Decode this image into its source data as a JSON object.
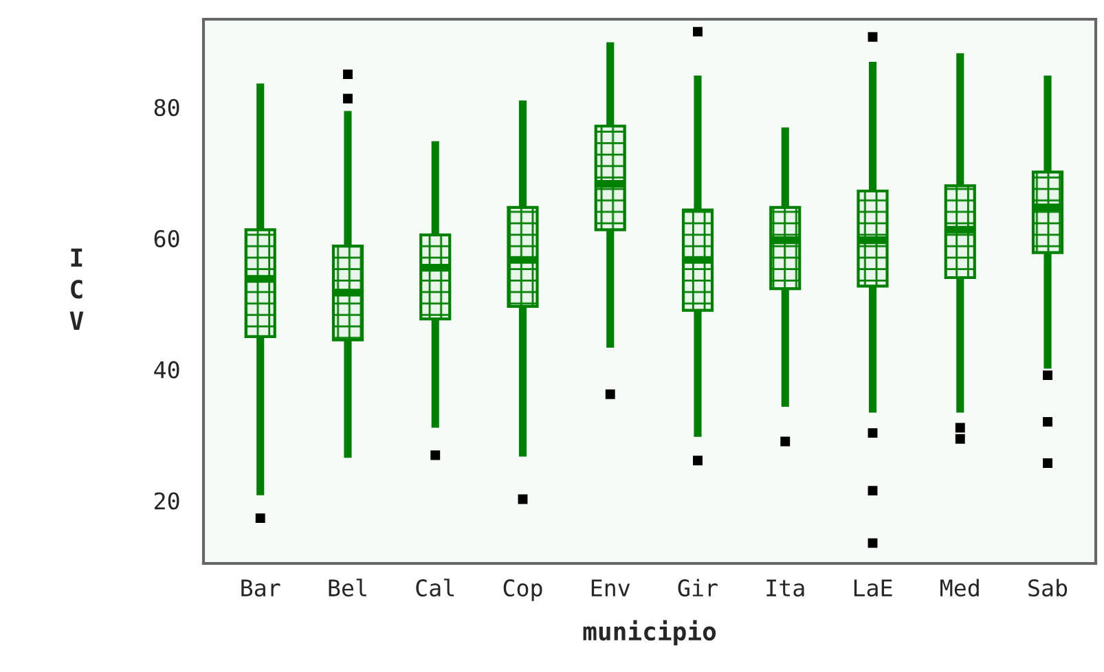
{
  "chart_data": {
    "type": "box",
    "xlabel": "municipio",
    "ylabel": "ICV",
    "categories": [
      "Bar",
      "Bel",
      "Cal",
      "Cop",
      "Env",
      "Gir",
      "Ita",
      "LaE",
      "Med",
      "Sab"
    ],
    "boxes": [
      {
        "low": 20.8,
        "q1": 45.0,
        "median": 53.8,
        "q3": 61.3,
        "high": 83.6,
        "outliers": [
          17.3
        ]
      },
      {
        "low": 26.5,
        "q1": 44.5,
        "median": 51.7,
        "q3": 58.8,
        "high": 79.4,
        "outliers": [
          85.0,
          81.3
        ]
      },
      {
        "low": 31.1,
        "q1": 47.7,
        "median": 55.5,
        "q3": 60.5,
        "high": 74.8,
        "outliers": [
          26.9
        ]
      },
      {
        "low": 26.7,
        "q1": 49.6,
        "median": 56.7,
        "q3": 64.7,
        "high": 81.0,
        "outliers": [
          20.2
        ]
      },
      {
        "low": 43.3,
        "q1": 61.3,
        "median": 68.3,
        "q3": 77.1,
        "high": 89.9,
        "outliers": [
          36.2
        ]
      },
      {
        "low": 29.7,
        "q1": 49.0,
        "median": 56.7,
        "q3": 64.3,
        "high": 84.8,
        "outliers": [
          91.5,
          26.1
        ]
      },
      {
        "low": 34.3,
        "q1": 52.3,
        "median": 59.7,
        "q3": 64.7,
        "high": 76.9,
        "outliers": [
          29.0
        ]
      },
      {
        "low": 33.4,
        "q1": 52.7,
        "median": 59.7,
        "q3": 67.2,
        "high": 86.9,
        "outliers": [
          90.7,
          30.3,
          21.5,
          13.5
        ]
      },
      {
        "low": 33.4,
        "q1": 54.0,
        "median": 61.3,
        "q3": 68.0,
        "high": 88.2,
        "outliers": [
          31.1,
          29.4
        ]
      },
      {
        "low": 40.1,
        "q1": 57.8,
        "median": 64.7,
        "q3": 70.1,
        "high": 84.8,
        "outliers": [
          39.1,
          32.0,
          25.7
        ]
      }
    ],
    "color": "#008000",
    "ylim": [
      10.4,
      93.4
    ],
    "yticks": [
      20,
      40,
      60,
      80
    ],
    "grid": false,
    "legend": false
  }
}
